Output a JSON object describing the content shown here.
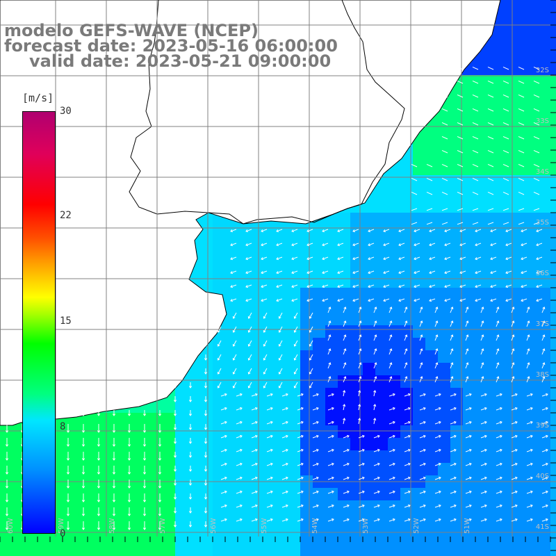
{
  "title": {
    "line1": "modelo GEFS-WAVE (NCEP)",
    "line2": "forecast date: 2023-05-16 06:00:00",
    "line3": "valid date: 2023-05-21 09:00:00"
  },
  "colorbar": {
    "unit": "[m/s]",
    "ticks": [
      "30",
      "22",
      "15",
      "8",
      "0"
    ],
    "tick_values": [
      30,
      22,
      15,
      8,
      0
    ],
    "range": [
      0,
      30
    ],
    "colors": [
      "#0000ff",
      "#0090ff",
      "#00e6ff",
      "#00ff80",
      "#00ff00",
      "#ffff00",
      "#ff0000",
      "#b00070"
    ]
  },
  "map": {
    "land_color": "#ffffff",
    "coastline_color": "#000000",
    "grid_color": "#808080",
    "arrow_color": "#ffffff",
    "right_axis_labels": [
      "32S",
      "33S",
      "34S",
      "35S",
      "36S",
      "37S",
      "38S",
      "39S",
      "40S",
      "41S"
    ],
    "bottom_axis_labels": [
      "60W",
      "59W",
      "58W",
      "57W",
      "56W",
      "55W",
      "54W",
      "53W",
      "52W",
      "51W"
    ]
  }
}
